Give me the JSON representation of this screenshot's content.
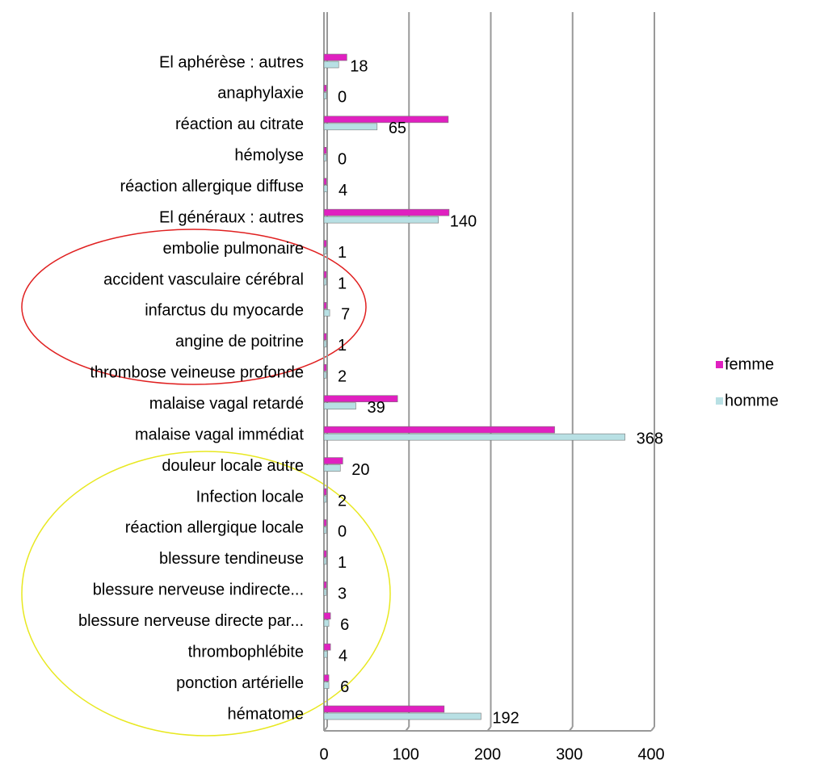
{
  "chart_data": {
    "type": "barh",
    "categories": [
      "El aphérèse : autres",
      "anaphylaxie",
      "réaction au citrate",
      "hémolyse",
      "réaction allergique diffuse",
      "El généraux : autres",
      "embolie pulmonaire",
      "accident vasculaire cérébral",
      "infarctus du myocarde",
      "angine de poitrine",
      "thrombose veineuse profonde",
      "malaise vagal retardé",
      "malaise vagal immédiat",
      "douleur locale autre",
      "Infection locale",
      "réaction allergique locale",
      "blessure tendineuse",
      "blessure nerveuse indirecte...",
      "blessure nerveuse directe par...",
      "thrombophlébite",
      "ponction artérielle",
      "hématome"
    ],
    "series": [
      {
        "name": "femme",
        "color": "#e020c0",
        "values": [
          28,
          1,
          152,
          1,
          3,
          153,
          2,
          1,
          2,
          1,
          1,
          90,
          282,
          23,
          2,
          1,
          1,
          2,
          8,
          8,
          6,
          147
        ]
      },
      {
        "name": "homme",
        "color": "#b8e0e4",
        "values": [
          18,
          0,
          65,
          0,
          4,
          140,
          1,
          1,
          7,
          1,
          2,
          39,
          368,
          20,
          2,
          0,
          1,
          3,
          6,
          4,
          6,
          192
        ],
        "show_labels": true
      }
    ],
    "xlim": [
      0,
      400
    ],
    "xticks": [
      0,
      100,
      200,
      300,
      400
    ],
    "grid": true,
    "legend": "right"
  }
}
